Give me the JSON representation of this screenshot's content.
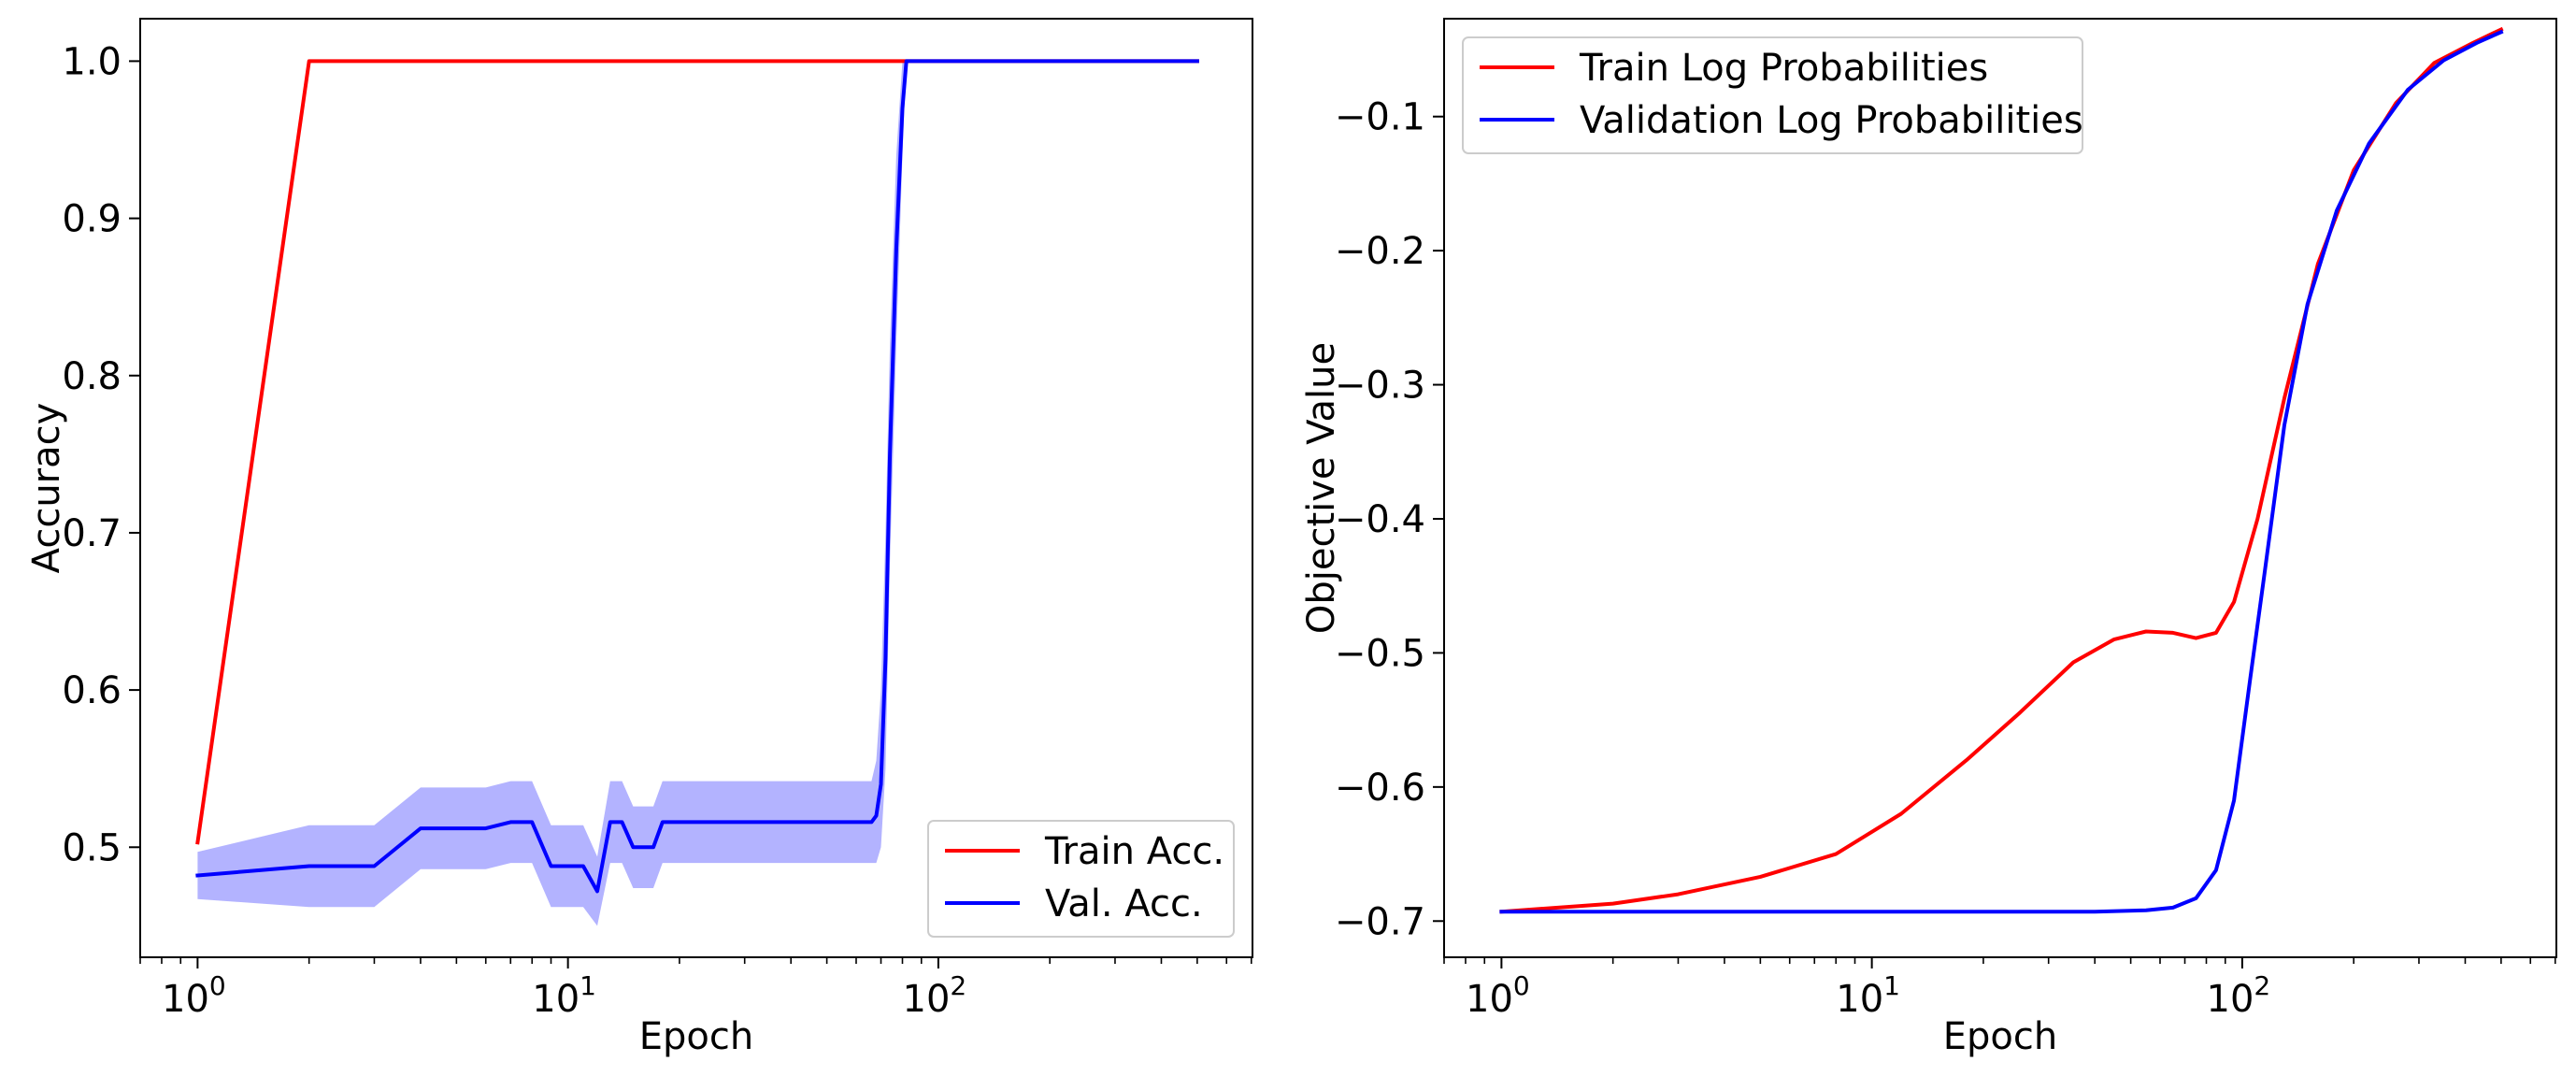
{
  "chart_data": [
    {
      "type": "line",
      "title": "",
      "xlabel": "Epoch",
      "ylabel": "Accuracy",
      "xscale": "log",
      "xlim": [
        0.7,
        705
      ],
      "ylim": [
        0.43,
        1.027
      ],
      "x_ticks": [
        {
          "base": "10",
          "exp": "0",
          "value": 1
        },
        {
          "base": "10",
          "exp": "1",
          "value": 10
        },
        {
          "base": "10",
          "exp": "2",
          "value": 100
        }
      ],
      "y_ticks": [
        "0.5",
        "0.6",
        "0.7",
        "0.8",
        "0.9",
        "1.0"
      ],
      "legend_position": "lower right",
      "series": [
        {
          "name": "Train Acc.",
          "color": "#ff0000",
          "points": [
            [
              1,
              0.503
            ],
            [
              2,
              1.0
            ],
            [
              500,
              1.0
            ]
          ]
        },
        {
          "name": "Val. Acc.",
          "color": "#0000ff",
          "band_color": "#b3b3ff",
          "points": [
            [
              1,
              0.482
            ],
            [
              2,
              0.488
            ],
            [
              3,
              0.488
            ],
            [
              4,
              0.512
            ],
            [
              6,
              0.512
            ],
            [
              7,
              0.516
            ],
            [
              8,
              0.516
            ],
            [
              9,
              0.488
            ],
            [
              11,
              0.488
            ],
            [
              12,
              0.472
            ],
            [
              13,
              0.516
            ],
            [
              14,
              0.516
            ],
            [
              15,
              0.5
            ],
            [
              17,
              0.5
            ],
            [
              18,
              0.516
            ],
            [
              66,
              0.516
            ],
            [
              68,
              0.52
            ],
            [
              70,
              0.54
            ],
            [
              72,
              0.62
            ],
            [
              74,
              0.75
            ],
            [
              77,
              0.88
            ],
            [
              80,
              0.97
            ],
            [
              82,
              1.0
            ],
            [
              500,
              1.0
            ]
          ],
          "band": [
            [
              1,
              0.467,
              0.497
            ],
            [
              2,
              0.462,
              0.514
            ],
            [
              3,
              0.462,
              0.514
            ],
            [
              4,
              0.486,
              0.538
            ],
            [
              6,
              0.486,
              0.538
            ],
            [
              7,
              0.49,
              0.542
            ],
            [
              8,
              0.49,
              0.542
            ],
            [
              9,
              0.462,
              0.514
            ],
            [
              11,
              0.462,
              0.514
            ],
            [
              12,
              0.45,
              0.494
            ],
            [
              13,
              0.49,
              0.542
            ],
            [
              14,
              0.49,
              0.542
            ],
            [
              15,
              0.474,
              0.526
            ],
            [
              17,
              0.474,
              0.526
            ],
            [
              18,
              0.49,
              0.542
            ],
            [
              66,
              0.49,
              0.542
            ],
            [
              68,
              0.49,
              0.555
            ],
            [
              70,
              0.5,
              0.6
            ],
            [
              72,
              0.55,
              0.7
            ],
            [
              74,
              0.68,
              0.82
            ],
            [
              77,
              0.82,
              0.94
            ],
            [
              80,
              0.94,
              1.0
            ],
            [
              82,
              1.0,
              1.0
            ],
            [
              500,
              1.0,
              1.0
            ]
          ]
        }
      ]
    },
    {
      "type": "line",
      "title": "",
      "xlabel": "Epoch",
      "ylabel": "Objective Value",
      "xscale": "log",
      "xlim": [
        0.7,
        705
      ],
      "ylim": [
        -0.727,
        -0.027
      ],
      "x_ticks": [
        {
          "base": "10",
          "exp": "0",
          "value": 1
        },
        {
          "base": "10",
          "exp": "1",
          "value": 10
        },
        {
          "base": "10",
          "exp": "2",
          "value": 100
        }
      ],
      "y_ticks": [
        "−0.7",
        "−0.6",
        "−0.5",
        "−0.4",
        "−0.3",
        "−0.2",
        "−0.1"
      ],
      "legend_position": "upper left",
      "series": [
        {
          "name": "Train Log Probabilities",
          "color": "#ff0000",
          "points": [
            [
              1,
              -0.693
            ],
            [
              2,
              -0.687
            ],
            [
              3,
              -0.68
            ],
            [
              5,
              -0.667
            ],
            [
              8,
              -0.65
            ],
            [
              12,
              -0.62
            ],
            [
              18,
              -0.58
            ],
            [
              25,
              -0.545
            ],
            [
              35,
              -0.507
            ],
            [
              45,
              -0.49
            ],
            [
              55,
              -0.484
            ],
            [
              65,
              -0.485
            ],
            [
              75,
              -0.489
            ],
            [
              85,
              -0.485
            ],
            [
              95,
              -0.462
            ],
            [
              110,
              -0.4
            ],
            [
              130,
              -0.31
            ],
            [
              160,
              -0.21
            ],
            [
              200,
              -0.14
            ],
            [
              260,
              -0.09
            ],
            [
              330,
              -0.06
            ],
            [
              420,
              -0.045
            ],
            [
              500,
              -0.035
            ]
          ]
        },
        {
          "name": "Validation Log Probabilities",
          "color": "#0000ff",
          "points": [
            [
              1,
              -0.693
            ],
            [
              10,
              -0.693
            ],
            [
              40,
              -0.693
            ],
            [
              55,
              -0.692
            ],
            [
              65,
              -0.69
            ],
            [
              75,
              -0.683
            ],
            [
              85,
              -0.662
            ],
            [
              95,
              -0.61
            ],
            [
              105,
              -0.52
            ],
            [
              115,
              -0.44
            ],
            [
              130,
              -0.33
            ],
            [
              150,
              -0.24
            ],
            [
              180,
              -0.17
            ],
            [
              220,
              -0.12
            ],
            [
              280,
              -0.08
            ],
            [
              350,
              -0.058
            ],
            [
              430,
              -0.045
            ],
            [
              500,
              -0.037
            ]
          ]
        }
      ]
    }
  ]
}
